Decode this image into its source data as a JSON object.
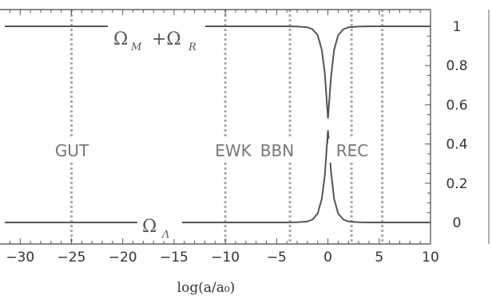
{
  "chart_data": {
    "type": "line",
    "xlabel": "log(a/a₀)",
    "ylabel": "",
    "xlim": [
      -31.5,
      10
    ],
    "ylim": [
      -0.05,
      1.05
    ],
    "x_ticks": [
      -30,
      -25,
      -20,
      -15,
      -10,
      -5,
      0,
      5,
      10
    ],
    "y_ticks": [
      0,
      0.2,
      0.4,
      0.6,
      0.8,
      1
    ],
    "x_tick_labels": [
      "−30",
      "−25",
      "−20",
      "−15",
      "−10",
      "−5",
      "0",
      "5",
      "10"
    ],
    "y_tick_labels": [
      "0",
      "0.2",
      "0.4",
      "0.6",
      "0.8",
      "1"
    ],
    "series": [
      {
        "label_main": "Ω",
        "label_sub1": "M",
        "label_plus": "+Ω",
        "label_sub2": "R",
        "x": [
          -31.5,
          -5,
          -4,
          -3,
          -2,
          -1.5,
          -1,
          -0.6,
          -0.3,
          0,
          0.3,
          0.6,
          1,
          1.5,
          2,
          3,
          4,
          10
        ],
        "y": [
          1,
          1,
          1,
          0.999,
          0.995,
          0.985,
          0.955,
          0.88,
          0.76,
          0.53,
          0.74,
          0.88,
          0.955,
          0.985,
          0.995,
          0.999,
          1,
          1
        ]
      },
      {
        "label_main": "Ω",
        "label_sub": "Λ",
        "x": [
          -31.5,
          -5,
          -4,
          -3,
          -2,
          -1.5,
          -1,
          -0.6,
          -0.3,
          0,
          0.3,
          0.6,
          1,
          1.5,
          2,
          3,
          4,
          10
        ],
        "y": [
          0,
          0,
          0,
          0.001,
          0.005,
          0.015,
          0.045,
          0.12,
          0.24,
          0.47,
          0.26,
          0.12,
          0.045,
          0.015,
          0.005,
          0.001,
          0,
          0
        ]
      }
    ],
    "event_lines": [
      {
        "x": -25,
        "label": "GUT"
      },
      {
        "x": -10,
        "label": "EWK"
      },
      {
        "x": -3.7,
        "label": "BBN"
      },
      {
        "x": 2.3,
        "label": "REC"
      },
      {
        "x": 5.3,
        "label": ""
      }
    ],
    "grid": false,
    "legend": "none"
  }
}
